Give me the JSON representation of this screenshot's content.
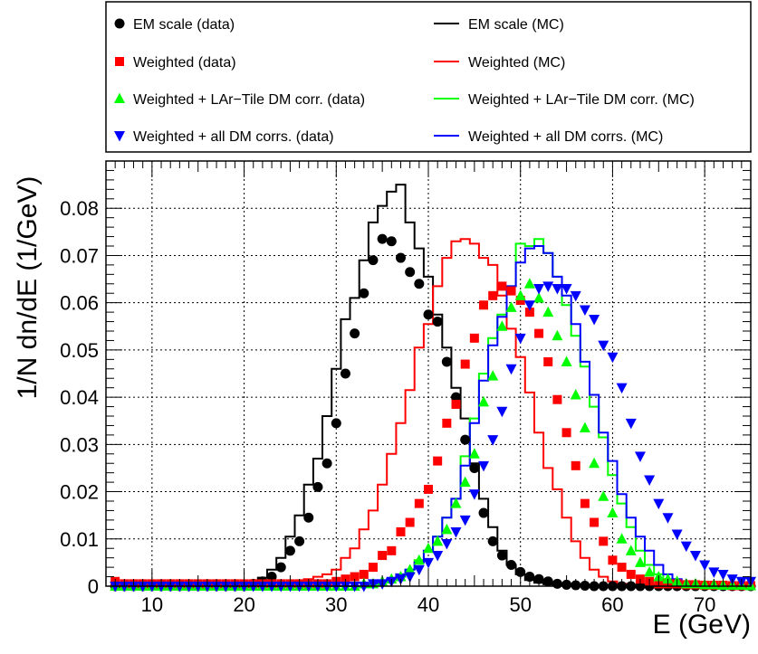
{
  "chart_data": {
    "type": "scatter",
    "xlabel": "E (GeV)",
    "ylabel": "1/N dn/dE (1/GeV)",
    "xlim": [
      5,
      75
    ],
    "ylim": [
      0,
      0.09
    ],
    "xticks": [
      "10",
      "20",
      "30",
      "40",
      "50",
      "60",
      "70"
    ],
    "yticks": [
      "0",
      "0.01",
      "0.02",
      "0.03",
      "0.04",
      "0.05",
      "0.06",
      "0.07",
      "0.08"
    ],
    "grid": true,
    "legend_position": "top",
    "bin_width_gev": 1,
    "x": [
      6,
      7,
      8,
      9,
      10,
      11,
      12,
      13,
      14,
      15,
      16,
      17,
      18,
      19,
      20,
      21,
      22,
      23,
      24,
      25,
      26,
      27,
      28,
      29,
      30,
      31,
      32,
      33,
      34,
      35,
      36,
      37,
      38,
      39,
      40,
      41,
      42,
      43,
      44,
      45,
      46,
      47,
      48,
      49,
      50,
      51,
      52,
      53,
      54,
      55,
      56,
      57,
      58,
      59,
      60,
      61,
      62,
      63,
      64,
      65,
      66,
      67,
      68,
      69,
      70,
      71,
      72,
      73,
      74,
      75
    ],
    "series": [
      {
        "name": "EM scale (data)",
        "style": "points",
        "marker": "circle",
        "color": "#000000",
        "values": [
          0,
          0,
          0,
          0,
          0,
          0,
          0,
          0,
          0,
          0,
          0,
          0,
          0,
          0,
          0,
          0.0005,
          0.001,
          0.002,
          0.004,
          0.0075,
          0.0095,
          0.0145,
          0.021,
          0.026,
          0.0345,
          0.045,
          0.0535,
          0.062,
          0.069,
          0.0735,
          0.073,
          0.0695,
          0.0665,
          0.064,
          0.0575,
          0.056,
          0.0475,
          0.04,
          0.031,
          0.025,
          0.0155,
          0.0095,
          0.0065,
          0.0045,
          0.003,
          0.002,
          0.0015,
          0.001,
          0.0005,
          0.0003,
          0.0002,
          0.0001,
          0,
          0,
          0,
          0,
          0,
          0,
          0,
          0,
          0,
          0,
          0,
          0,
          0,
          0,
          0,
          0,
          0,
          0
        ]
      },
      {
        "name": "Weighted (data)",
        "style": "points",
        "marker": "square",
        "color": "#ff0000",
        "values": [
          0.001,
          0.0005,
          0.0005,
          0.0005,
          0.0005,
          0.0005,
          0.0005,
          0.0005,
          0.0005,
          0.0005,
          0.0005,
          0.0005,
          0.0005,
          0.0005,
          0.0005,
          0.0005,
          0.0005,
          0.0005,
          0.0005,
          0.0005,
          0.0005,
          0.0005,
          0.0005,
          0.0005,
          0.001,
          0.0015,
          0.002,
          0.0025,
          0.004,
          0.0065,
          0.0075,
          0.0115,
          0.0135,
          0.0175,
          0.0205,
          0.0265,
          0.0345,
          0.0385,
          0.047,
          0.0525,
          0.0595,
          0.0615,
          0.0635,
          0.0625,
          0.0605,
          0.058,
          0.0535,
          0.0475,
          0.0395,
          0.0325,
          0.0255,
          0.0175,
          0.0135,
          0.0095,
          0.0055,
          0.004,
          0.0025,
          0.0015,
          0.001,
          0.0005,
          0.0005,
          0.0005,
          0.0003,
          0.0003,
          0.0002,
          0.0002,
          0.0002,
          0.0001,
          0.0001,
          0.0001
        ]
      },
      {
        "name": "Weighted + LAr−Tile DM corr. (data)",
        "style": "points",
        "marker": "triangle-up",
        "color": "#00ff00",
        "values": [
          0,
          0,
          0,
          0,
          0,
          0,
          0,
          0,
          0,
          0,
          0,
          0,
          0,
          0,
          0,
          0,
          0,
          0,
          0,
          0,
          0,
          0,
          0,
          0,
          0,
          0,
          0,
          0.0005,
          0.0005,
          0.001,
          0.0015,
          0.002,
          0.0035,
          0.0055,
          0.008,
          0.0095,
          0.012,
          0.0175,
          0.022,
          0.028,
          0.039,
          0.0445,
          0.055,
          0.059,
          0.0615,
          0.064,
          0.061,
          0.058,
          0.053,
          0.0475,
          0.0405,
          0.0335,
          0.026,
          0.019,
          0.0155,
          0.01,
          0.0075,
          0.005,
          0.003,
          0.002,
          0.0015,
          0.001,
          0.0005,
          0.0005,
          0.0003,
          0.0003,
          0.0002,
          0.0002,
          0.0002,
          0.0001
        ]
      },
      {
        "name": "Weighted + all DM corrs. (data)",
        "style": "points",
        "marker": "triangle-down",
        "color": "#0000ff",
        "values": [
          0,
          0,
          0,
          0,
          0,
          0,
          0,
          0,
          0,
          0,
          0,
          0,
          0,
          0,
          0,
          0,
          0,
          0,
          0,
          0,
          0,
          0,
          0,
          0,
          0,
          0,
          0,
          0,
          0.0005,
          0.0005,
          0.001,
          0.0015,
          0.002,
          0.0035,
          0.005,
          0.0065,
          0.009,
          0.0115,
          0.014,
          0.0195,
          0.0255,
          0.031,
          0.037,
          0.046,
          0.0525,
          0.0595,
          0.063,
          0.0635,
          0.063,
          0.063,
          0.0615,
          0.0585,
          0.0565,
          0.051,
          0.0485,
          0.042,
          0.0345,
          0.0275,
          0.0225,
          0.0175,
          0.0145,
          0.011,
          0.0085,
          0.0065,
          0.0045,
          0.003,
          0.0025,
          0.0015,
          0.001,
          0.001
        ]
      },
      {
        "name": "EM scale (MC)",
        "style": "step",
        "color": "#000000",
        "values": [
          0,
          0,
          0,
          0,
          0,
          0,
          0,
          0,
          0,
          0,
          0,
          0,
          0,
          0,
          0,
          0.0008,
          0.0018,
          0.0035,
          0.006,
          0.0105,
          0.015,
          0.0215,
          0.027,
          0.036,
          0.046,
          0.0565,
          0.061,
          0.069,
          0.077,
          0.0805,
          0.0835,
          0.085,
          0.077,
          0.0715,
          0.0655,
          0.0575,
          0.0505,
          0.042,
          0.0355,
          0.026,
          0.0185,
          0.0125,
          0.0075,
          0.0045,
          0.0025,
          0.0013,
          0.0007,
          0.0004,
          0.0002,
          0.0001,
          0,
          0,
          0,
          0,
          0,
          0,
          0,
          0,
          0,
          0,
          0,
          0,
          0,
          0,
          0,
          0,
          0,
          0,
          0,
          0
        ]
      },
      {
        "name": "Weighted (MC)",
        "style": "step",
        "color": "#ff0000",
        "values": [
          0,
          0,
          0,
          0,
          0,
          0,
          0,
          0,
          0,
          0,
          0,
          0,
          0,
          0,
          0,
          0,
          0,
          0,
          0,
          0.0005,
          0.001,
          0.0015,
          0.002,
          0.0025,
          0.0035,
          0.006,
          0.008,
          0.012,
          0.016,
          0.0215,
          0.028,
          0.0345,
          0.0415,
          0.0505,
          0.0555,
          0.0635,
          0.0695,
          0.073,
          0.0735,
          0.0725,
          0.0695,
          0.068,
          0.0615,
          0.0545,
          0.0485,
          0.041,
          0.0325,
          0.025,
          0.0205,
          0.0145,
          0.0095,
          0.006,
          0.0035,
          0.002,
          0.001,
          0.0005,
          0.0003,
          0.0002,
          0.0001,
          0,
          0,
          0,
          0,
          0,
          0,
          0,
          0,
          0,
          0,
          0
        ]
      },
      {
        "name": "Weighted + LAr−Tile DM corr. (MC)",
        "style": "step",
        "color": "#00ff00",
        "values": [
          0,
          0,
          0,
          0,
          0,
          0,
          0,
          0,
          0,
          0,
          0,
          0,
          0,
          0,
          0,
          0,
          0,
          0,
          0,
          0,
          0,
          0,
          0,
          0,
          0,
          0,
          0,
          0,
          0.0005,
          0.001,
          0.0015,
          0.002,
          0.0035,
          0.0055,
          0.0075,
          0.0105,
          0.0145,
          0.0185,
          0.0275,
          0.0355,
          0.045,
          0.0525,
          0.0575,
          0.0635,
          0.0725,
          0.072,
          0.0735,
          0.0705,
          0.0655,
          0.0595,
          0.053,
          0.0465,
          0.038,
          0.0315,
          0.0235,
          0.0175,
          0.0125,
          0.0075,
          0.0045,
          0.0025,
          0.0015,
          0.0008,
          0.0005,
          0.0003,
          0.0002,
          0.0001,
          0,
          0,
          0,
          0
        ]
      },
      {
        "name": "Weighted + all DM corrs. (MC)",
        "style": "step",
        "color": "#0000ff",
        "values": [
          0,
          0,
          0,
          0,
          0,
          0,
          0,
          0,
          0,
          0,
          0,
          0,
          0,
          0,
          0,
          0,
          0,
          0,
          0,
          0,
          0,
          0,
          0,
          0,
          0,
          0,
          0,
          0,
          0.0005,
          0.001,
          0.0015,
          0.0025,
          0.0035,
          0.005,
          0.0075,
          0.0105,
          0.0145,
          0.0185,
          0.0255,
          0.0345,
          0.0435,
          0.051,
          0.057,
          0.0635,
          0.0685,
          0.0715,
          0.072,
          0.0705,
          0.0655,
          0.0615,
          0.0555,
          0.0475,
          0.0405,
          0.0325,
          0.0265,
          0.0195,
          0.0145,
          0.0105,
          0.0075,
          0.0045,
          0.0025,
          0.0015,
          0.001,
          0.0005,
          0.0003,
          0.0002,
          0.0001,
          0,
          0,
          0
        ]
      }
    ]
  }
}
